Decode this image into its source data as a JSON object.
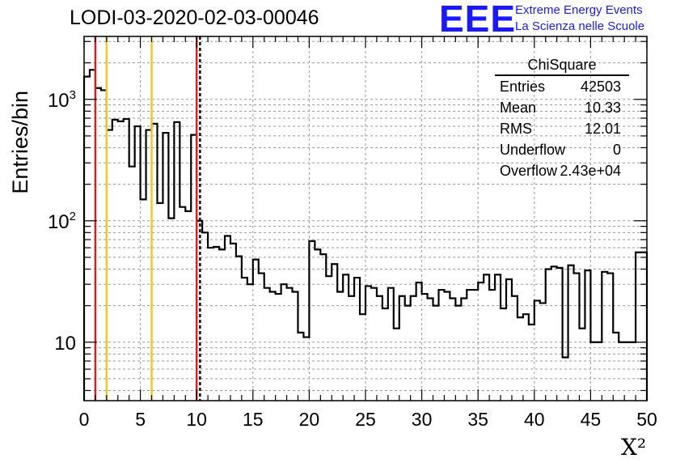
{
  "chart_data": {
    "type": "bar",
    "style": "step-histogram",
    "title": "LODI-03-2020-02-03-00046",
    "xlabel": "X²",
    "ylabel": "Entries/bin",
    "xlim": [
      0,
      50
    ],
    "ylim": [
      3.3,
      3300
    ],
    "yscale": "log",
    "grid": true,
    "bin_width": 0.5,
    "x_ticks": [
      "0",
      "5",
      "10",
      "15",
      "20",
      "25",
      "30",
      "35",
      "40",
      "45",
      "50"
    ],
    "y_ticks": [
      {
        "base": "10",
        "exp": "",
        "value": 10
      },
      {
        "base": "10",
        "exp": "2",
        "value": 100
      },
      {
        "base": "10",
        "exp": "3",
        "value": 1000
      }
    ],
    "values": [
      1540,
      1750,
      1240,
      1190,
      560,
      680,
      660,
      690,
      280,
      600,
      150,
      560,
      630,
      140,
      530,
      105,
      650,
      130,
      120,
      510,
      100,
      80,
      60,
      61,
      58,
      75,
      65,
      51,
      34,
      30,
      48,
      37,
      28,
      26,
      25,
      30,
      28,
      26,
      12,
      11,
      68,
      58,
      53,
      35,
      44,
      26,
      36,
      24,
      34,
      17,
      29,
      28,
      24,
      19,
      28,
      13,
      24,
      20,
      24,
      31,
      25,
      23,
      20,
      27,
      26,
      23,
      20,
      23,
      27,
      27,
      31,
      36,
      27,
      36,
      19,
      33,
      24,
      16,
      17,
      14,
      22,
      21,
      40,
      42,
      41,
      7.5,
      43,
      37,
      13,
      39,
      10,
      10,
      38,
      37,
      12,
      10,
      10,
      10,
      55,
      55
    ],
    "vertical_lines": [
      {
        "x": 1,
        "color": "#e8181a",
        "style": "solid"
      },
      {
        "x": 2,
        "color": "#f5c518",
        "style": "solid"
      },
      {
        "x": 6,
        "color": "#f5c518",
        "style": "solid"
      },
      {
        "x": 10,
        "color": "#e8181a",
        "style": "solid"
      },
      {
        "x": 10.3,
        "color": "#000000",
        "style": "dashed"
      }
    ],
    "stats": {
      "title": "ChiSquare",
      "rows": [
        {
          "key": "Entries",
          "value": "42503"
        },
        {
          "key": "Mean",
          "value": "10.33"
        },
        {
          "key": "RMS",
          "value": "12.01"
        },
        {
          "key": "Underflow",
          "value": "0"
        },
        {
          "key": "Overflow",
          "value": "2.43e+04"
        }
      ]
    },
    "logo": {
      "mark": "EEE",
      "line1": "Extreme Energy Events",
      "line2": "La Scienza nelle Scuole",
      "color": "#1a1aff"
    }
  }
}
